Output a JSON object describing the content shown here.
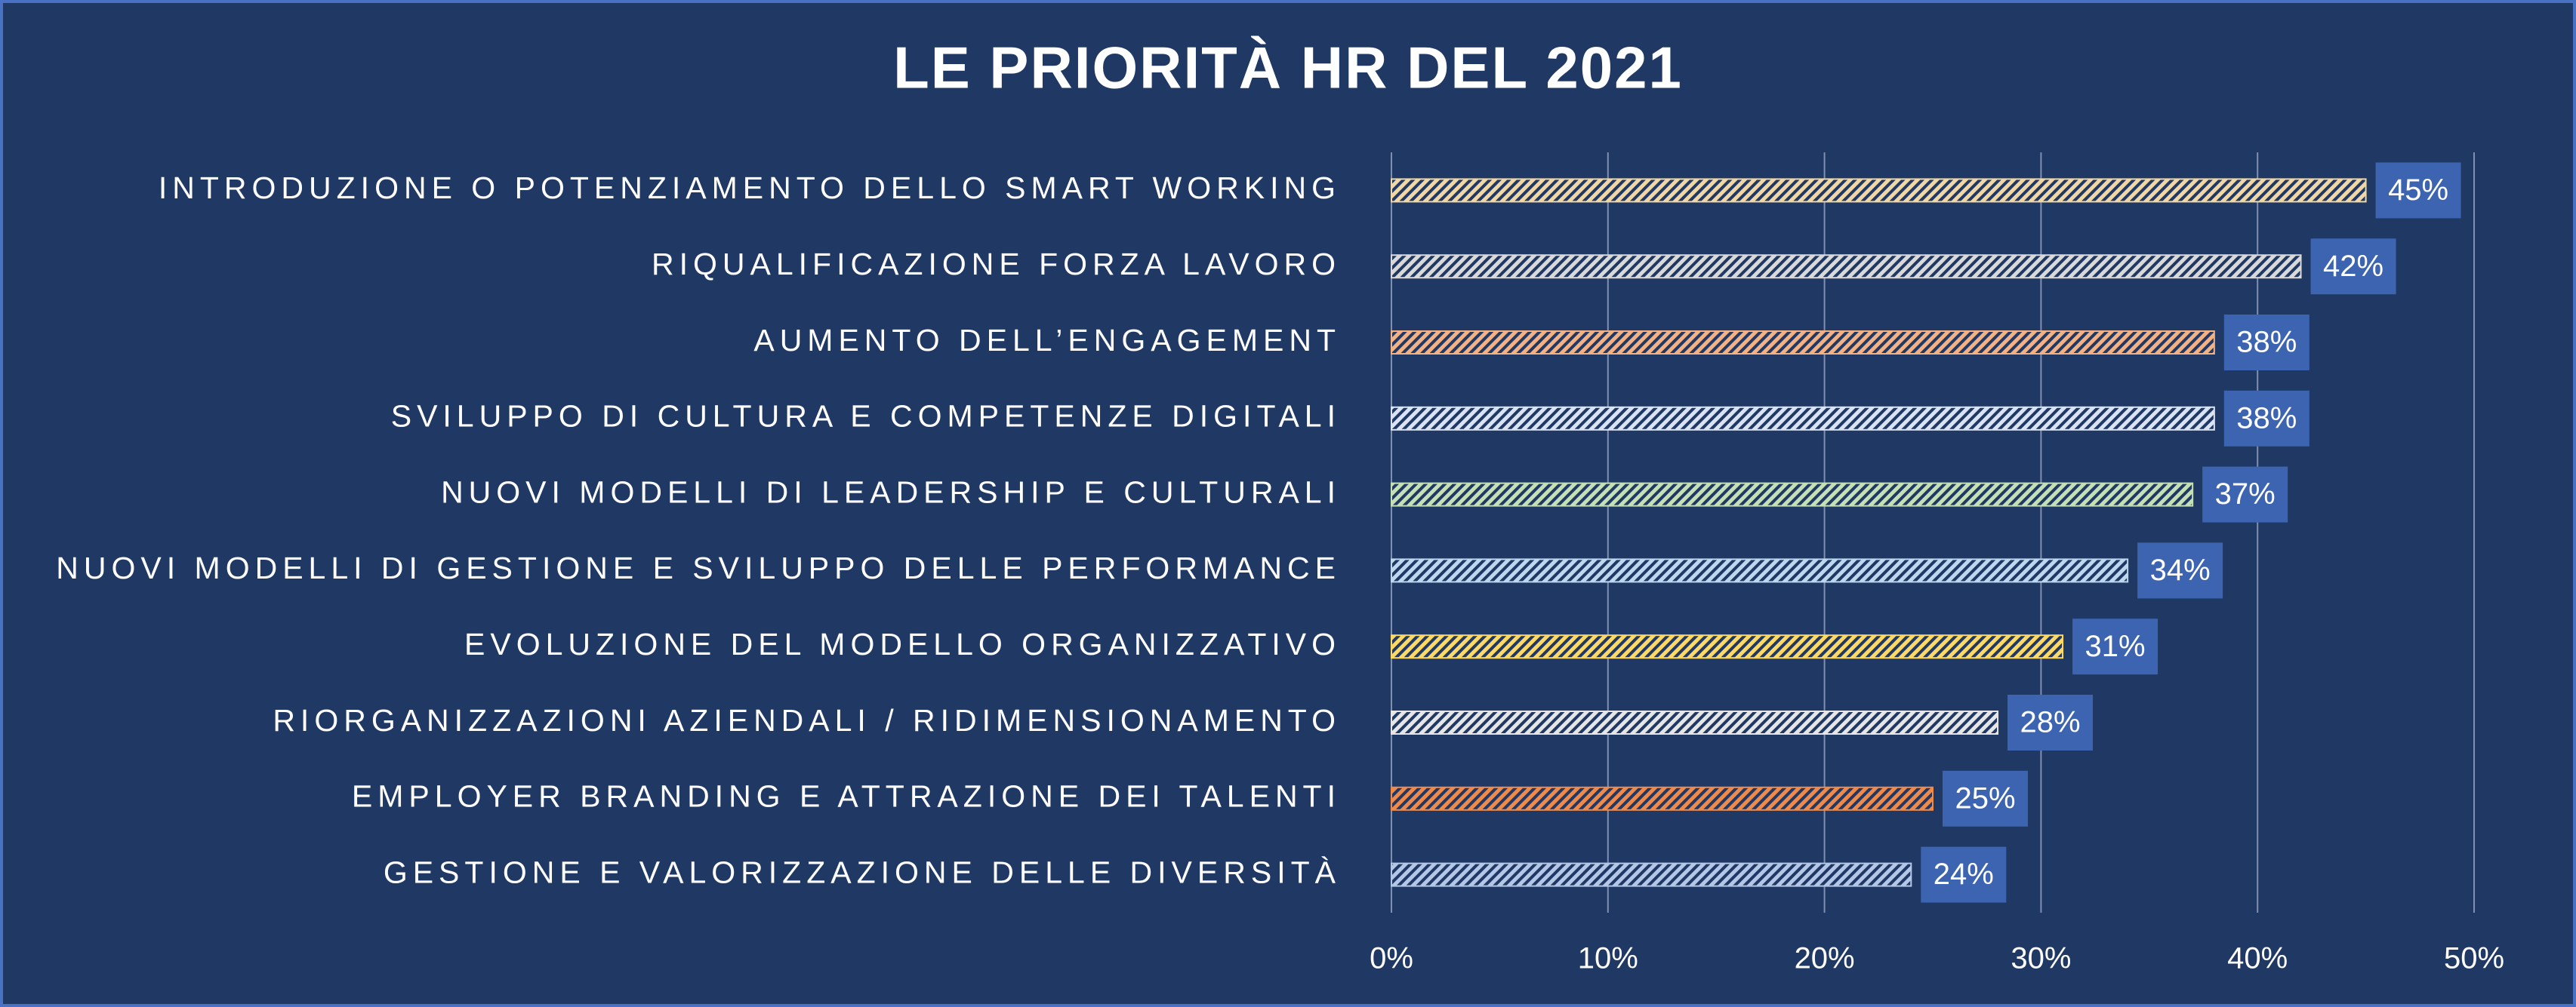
{
  "chart_data": {
    "type": "bar",
    "orientation": "horizontal",
    "title": "LE PRIORITÀ HR DEL 2021",
    "categories": [
      "INTRODUZIONE O POTENZIAMENTO DELLO SMART WORKING",
      "RIQUALIFICAZIONE FORZA LAVORO",
      "AUMENTO DELL’ENGAGEMENT",
      "SVILUPPO DI CULTURA E COMPETENZE DIGITALI",
      "NUOVI MODELLI DI LEADERSHIP E CULTURALI",
      "NUOVI MODELLI DI GESTIONE E SVILUPPO DELLE PERFORMANCE",
      "EVOLUZIONE DEL MODELLO ORGANIZZATIVO",
      "RIORGANIZZAZIONI AZIENDALI / RIDIMENSIONAMENTO",
      "EMPLOYER BRANDING E ATTRAZIONE DEI TALENTI",
      "GESTIONE E VALORIZZAZIONE DELLE DIVERSITÀ"
    ],
    "values": [
      45,
      42,
      38,
      38,
      37,
      34,
      31,
      28,
      25,
      24
    ],
    "value_labels": [
      "45%",
      "42%",
      "38%",
      "38%",
      "37%",
      "34%",
      "31%",
      "28%",
      "25%",
      "24%"
    ],
    "colors": [
      "#f2d7a6",
      "#d9d9d9",
      "#f4b183",
      "#dae3f3",
      "#c5e0b4",
      "#bdd7ee",
      "#ffd966",
      "#e7e6e6",
      "#f08a4b",
      "#b4c7e7"
    ],
    "xlim": [
      0,
      50
    ],
    "xticks": [
      {
        "value": 0,
        "label": "0%"
      },
      {
        "value": 10,
        "label": "10%"
      },
      {
        "value": 20,
        "label": "20%"
      },
      {
        "value": 30,
        "label": "30%"
      },
      {
        "value": 40,
        "label": "40%"
      },
      {
        "value": 50,
        "label": "50%"
      }
    ],
    "grid": true
  }
}
